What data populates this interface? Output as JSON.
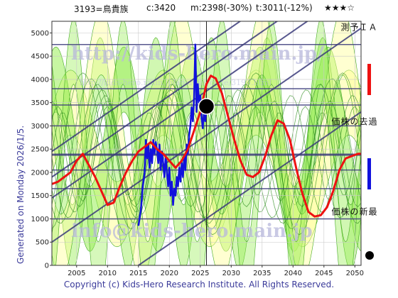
{
  "header": {
    "code_name": "3193=鳥貴族",
    "current": "c:3420",
    "min": "m:2398(-30%)",
    "target": "t:3011(-12%)",
    "stars": "★★★☆"
  },
  "watermarks": {
    "url_big": "http://kids-hero.main.jp/",
    "url_small": "http://kids-hero.main.jp/analysis/code/3193.html",
    "mail": "info@kids-hero.main.jp"
  },
  "side_text": "Generated on Monday 2026/1/5.",
  "footer": "Copyright (c) Kids-Hero Research Institute. All Rights Reserved.",
  "legend": [
    {
      "label": "ＡＩ予測",
      "color": "#ee1111"
    },
    {
      "label": "過去の株価",
      "color": "#1111dd"
    },
    {
      "label": "最新の株価",
      "color": "#000000"
    }
  ],
  "colors": {
    "band_green": "#99ee55",
    "band_yellow": "#ffff99",
    "grid_navy": "#3a3a7a"
  },
  "chart_data": {
    "type": "line",
    "title": "",
    "xlabel": "",
    "ylabel": "",
    "xlim": [
      2001,
      2051
    ],
    "ylim": [
      0,
      5250
    ],
    "x_ticks": [
      2005,
      2010,
      2015,
      2020,
      2025,
      2030,
      2035,
      2040,
      2045,
      2050
    ],
    "y_ticks": [
      0,
      500,
      1000,
      1500,
      2000,
      2500,
      3000,
      3500,
      4000,
      4500,
      5000
    ],
    "horizontal_levels": [
      1000,
      1650,
      2050,
      2380,
      3000,
      3450,
      3800,
      4750
    ],
    "trend_lines": [
      {
        "x": [
          2001,
          2051
        ],
        "y": [
          500,
          5100
        ]
      },
      {
        "x": [
          2001,
          2051
        ],
        "y": [
          1450,
          6050
        ]
      },
      {
        "x": [
          2001,
          2051
        ],
        "y": [
          2450,
          7050
        ]
      },
      {
        "x": [
          2015,
          2051
        ],
        "y": [
          0,
          3300
        ]
      },
      {
        "x": [
          2001,
          2051
        ],
        "y": [
          1900,
          6500
        ]
      }
    ],
    "series": [
      {
        "name": "過去の株価",
        "color": "#1111dd",
        "x": [
          2015.0,
          2015.4,
          2015.7,
          2016.0,
          2016.2,
          2016.4,
          2016.6,
          2016.8,
          2017.0,
          2017.2,
          2017.4,
          2017.6,
          2017.8,
          2018.0,
          2018.2,
          2018.4,
          2018.6,
          2018.8,
          2019.0,
          2019.2,
          2019.4,
          2019.6,
          2019.8,
          2020.0,
          2020.2,
          2020.4,
          2020.6,
          2020.8,
          2021.0,
          2021.2,
          2021.4,
          2021.6,
          2021.8,
          2022.0,
          2022.2,
          2022.4,
          2022.6,
          2022.8,
          2023.0,
          2023.2,
          2023.4,
          2023.6,
          2023.8,
          2024.0,
          2024.2,
          2024.4,
          2024.6,
          2024.8,
          2025.0,
          2025.2,
          2025.4,
          2025.6,
          2025.8,
          2026.0
        ],
        "y": [
          850,
          1200,
          1700,
          2000,
          2700,
          2300,
          2600,
          2100,
          2500,
          2200,
          2700,
          2400,
          2650,
          2500,
          2200,
          2600,
          2050,
          2450,
          2200,
          1900,
          2350,
          2000,
          1700,
          2100,
          1500,
          1800,
          1300,
          1650,
          1500,
          1900,
          1700,
          2100,
          1800,
          2200,
          1900,
          2350,
          2050,
          2600,
          2400,
          2800,
          3000,
          3400,
          3100,
          3600,
          4750,
          3300,
          3900,
          3500,
          3650,
          3200,
          2950,
          3300,
          3100,
          3420
        ]
      },
      {
        "name": "ＡＩ予測",
        "color": "#ee1111",
        "x": [
          2001.0,
          2002.0,
          2003.0,
          2004.0,
          2005.0,
          2006.0,
          2007.0,
          2008.0,
          2009.0,
          2010.0,
          2011.0,
          2012.0,
          2013.0,
          2014.0,
          2015.0,
          2016.0,
          2017.0,
          2018.0,
          2019.0,
          2020.0,
          2021.0,
          2022.0,
          2023.0,
          2024.0,
          2025.0,
          2025.5,
          2026.0,
          2026.7,
          2027.5,
          2028.5,
          2029.5,
          2030.5,
          2031.5,
          2032.5,
          2033.5,
          2034.5,
          2035.5,
          2036.5,
          2037.5,
          2038.5,
          2039.5,
          2040.5,
          2041.5,
          2042.5,
          2043.5,
          2044.5,
          2045.5,
          2046.5,
          2047.5,
          2048.5,
          2049.5,
          2050.5,
          2051.0
        ],
        "y": [
          1750,
          1800,
          1900,
          2000,
          2250,
          2400,
          2150,
          1900,
          1600,
          1300,
          1350,
          1700,
          2000,
          2250,
          2450,
          2550,
          2650,
          2500,
          2400,
          2250,
          2100,
          2250,
          2500,
          2900,
          3300,
          3600,
          3900,
          4080,
          4020,
          3700,
          3200,
          2700,
          2250,
          1950,
          1900,
          2000,
          2350,
          2800,
          3120,
          3050,
          2700,
          2100,
          1550,
          1150,
          1050,
          1080,
          1250,
          1600,
          2050,
          2300,
          2350,
          2400,
          2400
        ]
      }
    ],
    "latest_point": {
      "x": 2026.0,
      "y": 3420,
      "label": "最新の株価"
    }
  }
}
